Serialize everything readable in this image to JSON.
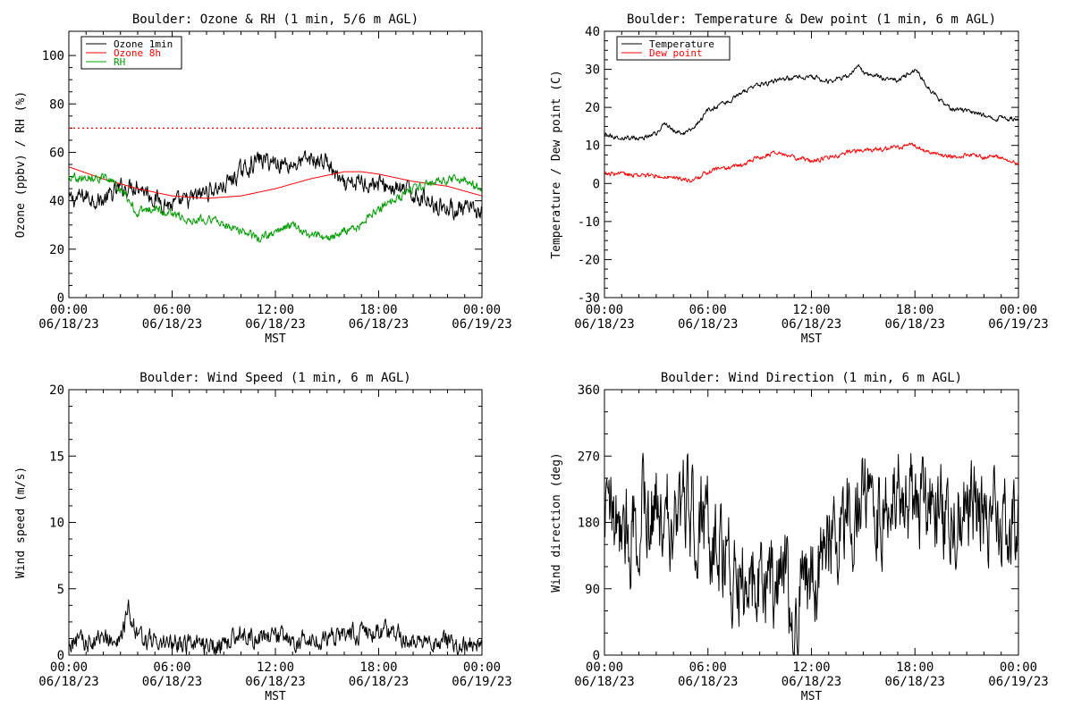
{
  "chart_data": [
    {
      "id": "ozone",
      "type": "line",
      "title": "Boulder: Ozone & RH (1 min, 5/6 m AGL)",
      "xlabel": "MST",
      "ylabel": "Ozone (ppbv) / RH (%)",
      "x_unit": "hours since 06/18/23 00:00 MST",
      "xlim": [
        0,
        24
      ],
      "ylim": [
        0,
        110
      ],
      "yticks": [
        0,
        20,
        40,
        60,
        80,
        100
      ],
      "xticks": [
        {
          "time": "00:00",
          "date": "06/18/23"
        },
        {
          "time": "06:00",
          "date": "06/18/23"
        },
        {
          "time": "12:00",
          "date": "06/18/23"
        },
        {
          "time": "18:00",
          "date": "06/18/23"
        },
        {
          "time": "00:00",
          "date": "06/19/23"
        }
      ],
      "legend_position": "top-left",
      "reference_line": {
        "y": 70,
        "color": "#ff0000",
        "style": "dotted"
      },
      "series": [
        {
          "name": "Ozone 1min",
          "color": "#000000",
          "noise": 3,
          "x": [
            0,
            1,
            2,
            3,
            4,
            5,
            6,
            7,
            8,
            9,
            10,
            11,
            12,
            13,
            14,
            15,
            16,
            17,
            18,
            19,
            20,
            21,
            22,
            23,
            24
          ],
          "y": [
            40,
            42,
            40,
            45,
            47,
            41,
            38,
            40,
            44,
            46,
            52,
            57,
            56,
            55,
            57,
            56,
            45,
            48,
            47,
            45,
            43,
            40,
            37,
            36,
            35
          ]
        },
        {
          "name": "Ozone 8h",
          "color": "#ff0000",
          "noise": 0,
          "x": [
            0,
            2,
            4,
            6,
            8,
            10,
            12,
            14,
            16,
            17,
            18,
            20,
            22,
            24
          ],
          "y": [
            54,
            49,
            45,
            42,
            41,
            42,
            45,
            49,
            52,
            52,
            51,
            48,
            46,
            42
          ]
        },
        {
          "name": "RH",
          "color": "#00a000",
          "noise": 1.5,
          "x": [
            0,
            1,
            2,
            3,
            4,
            5,
            6,
            7,
            8,
            9,
            10,
            11,
            12,
            13,
            14,
            15,
            16,
            17,
            18,
            19,
            20,
            21,
            22,
            23,
            24
          ],
          "y": [
            50,
            50,
            50,
            45,
            35,
            37,
            35,
            32,
            33,
            30,
            28,
            24,
            27,
            30,
            26,
            24,
            27,
            30,
            37,
            41,
            45,
            47,
            49,
            49,
            44
          ]
        }
      ]
    },
    {
      "id": "temp",
      "type": "line",
      "title": "Boulder: Temperature & Dew point (1 min, 6 m AGL)",
      "xlabel": "MST",
      "ylabel": "Temperature / Dew point (C)",
      "x_unit": "hours since 06/18/23 00:00 MST",
      "xlim": [
        0,
        24
      ],
      "ylim": [
        -30,
        40
      ],
      "yticks": [
        -30,
        -20,
        -10,
        0,
        10,
        20,
        30,
        40
      ],
      "xticks": [
        {
          "time": "00:00",
          "date": "06/18/23"
        },
        {
          "time": "06:00",
          "date": "06/18/23"
        },
        {
          "time": "12:00",
          "date": "06/18/23"
        },
        {
          "time": "18:00",
          "date": "06/18/23"
        },
        {
          "time": "00:00",
          "date": "06/19/23"
        }
      ],
      "legend_position": "top-left",
      "series": [
        {
          "name": "Temperature",
          "color": "#000000",
          "noise": 0.5,
          "x": [
            0,
            1,
            2,
            3,
            3.5,
            4,
            4.5,
            5,
            6,
            7,
            8,
            9,
            10,
            11,
            12,
            13,
            14,
            14.8,
            15,
            16,
            17,
            18,
            19,
            20,
            21,
            22,
            23,
            24
          ],
          "y": [
            13,
            12,
            12,
            13,
            16,
            14,
            13,
            14,
            19,
            21,
            24,
            26,
            27,
            28,
            28,
            27,
            28,
            31,
            29,
            28,
            27,
            30,
            24,
            20,
            19,
            18,
            17,
            17
          ]
        },
        {
          "name": "Dew point",
          "color": "#ff0000",
          "noise": 0.5,
          "x": [
            0,
            1,
            2,
            3,
            4,
            5,
            6,
            7,
            8,
            9,
            10,
            11,
            12,
            13,
            14,
            15,
            16,
            17,
            18,
            19,
            20,
            21,
            22,
            23,
            24
          ],
          "y": [
            2.5,
            2.5,
            2,
            2,
            1.5,
            0.5,
            3,
            4,
            5,
            7,
            8,
            7,
            6,
            7,
            8,
            9,
            9,
            9.5,
            10,
            8,
            7,
            7.5,
            7,
            7,
            5
          ]
        }
      ]
    },
    {
      "id": "wspd",
      "type": "line",
      "title": "Boulder: Wind Speed (1 min, 6 m AGL)",
      "xlabel": "MST",
      "ylabel": "Wind speed (m/s)",
      "x_unit": "hours since 06/18/23 00:00 MST",
      "xlim": [
        0,
        24
      ],
      "ylim": [
        0,
        20
      ],
      "yticks": [
        0,
        5,
        10,
        15,
        20
      ],
      "xticks": [
        {
          "time": "00:00",
          "date": "06/18/23"
        },
        {
          "time": "06:00",
          "date": "06/18/23"
        },
        {
          "time": "12:00",
          "date": "06/18/23"
        },
        {
          "time": "18:00",
          "date": "06/18/23"
        },
        {
          "time": "00:00",
          "date": "06/19/23"
        }
      ],
      "series": [
        {
          "name": "",
          "color": "#000000",
          "noise": 0.6,
          "x": [
            0,
            1,
            2,
            3,
            3.5,
            4,
            5,
            6,
            7,
            8,
            9,
            10,
            11,
            12,
            13,
            14,
            15,
            16,
            17,
            18,
            19,
            20,
            21,
            22,
            23,
            24
          ],
          "y": [
            1,
            1,
            1,
            1.3,
            3.5,
            1.2,
            1,
            1,
            0.8,
            0.6,
            0.8,
            1.5,
            1.2,
            1.3,
            1,
            1,
            1.2,
            1.5,
            1.7,
            1.8,
            1.6,
            1.2,
            0.9,
            0.8,
            1,
            1.2
          ]
        }
      ]
    },
    {
      "id": "wdir",
      "type": "line",
      "title": "Boulder: Wind Direction (1 min, 6 m AGL)",
      "xlabel": "MST",
      "ylabel": "Wind direction (deg)",
      "x_unit": "hours since 06/18/23 00:00 MST",
      "xlim": [
        0,
        24
      ],
      "ylim": [
        0,
        360
      ],
      "yticks": [
        0,
        90,
        180,
        270,
        360
      ],
      "xticks": [
        {
          "time": "00:00",
          "date": "06/18/23"
        },
        {
          "time": "06:00",
          "date": "06/18/23"
        },
        {
          "time": "12:00",
          "date": "06/18/23"
        },
        {
          "time": "18:00",
          "date": "06/18/23"
        },
        {
          "time": "00:00",
          "date": "06/19/23"
        }
      ],
      "series": [
        {
          "name": "",
          "color": "#000000",
          "noise": 55,
          "x": [
            0,
            1,
            2,
            3,
            4,
            5,
            6,
            7,
            8,
            9,
            10,
            11,
            12,
            13,
            14,
            15,
            16,
            17,
            18,
            19,
            20,
            21,
            22,
            23,
            24
          ],
          "y": [
            180,
            170,
            180,
            200,
            190,
            200,
            170,
            130,
            100,
            110,
            90,
            80,
            100,
            170,
            190,
            210,
            200,
            220,
            200,
            210,
            200,
            190,
            200,
            170,
            180
          ]
        }
      ]
    }
  ]
}
